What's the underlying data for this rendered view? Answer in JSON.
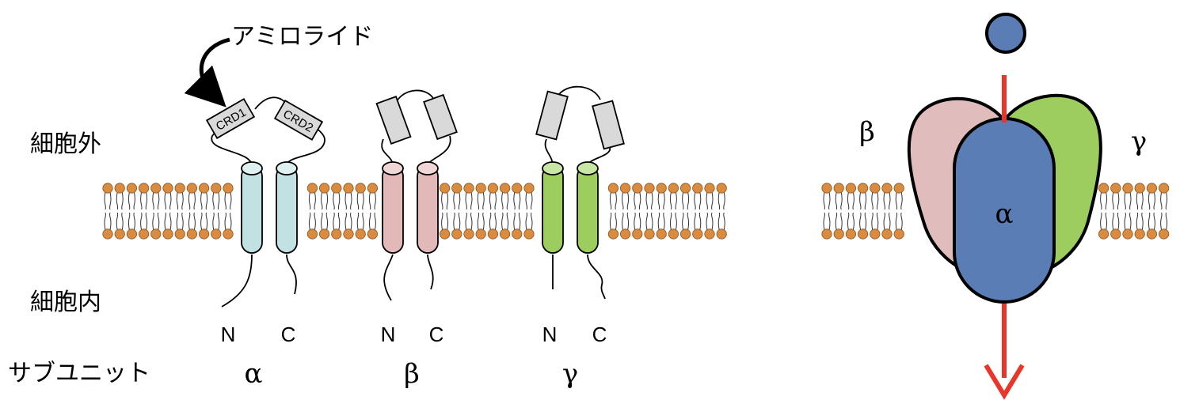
{
  "drug_label": "アミロライド",
  "extracellular_label": "細胞外",
  "intracellular_label": "細胞内",
  "subunit_label": "サブユニット",
  "crd1_label": "CRD1",
  "crd2_label": "CRD2",
  "subunits": [
    {
      "greek": "α",
      "n": "N",
      "c": "C",
      "color": "#c2e1e3"
    },
    {
      "greek": "β",
      "n": "N",
      "c": "C",
      "color": "#e2b9b8"
    },
    {
      "greek": "γ",
      "n": "N",
      "c": "C",
      "color": "#9ccd5e"
    }
  ],
  "complex": {
    "alpha": "α",
    "beta": "β",
    "gamma": "γ"
  },
  "colors": {
    "lipid_head": "#d98b3f",
    "alpha_complex": "#5a7db5",
    "beta_complex": "#e0bcbc",
    "gamma_complex": "#9ccd5e",
    "ion": "#5a7db5",
    "arrow": "#e8372a",
    "crd": "#d9d9d9"
  }
}
